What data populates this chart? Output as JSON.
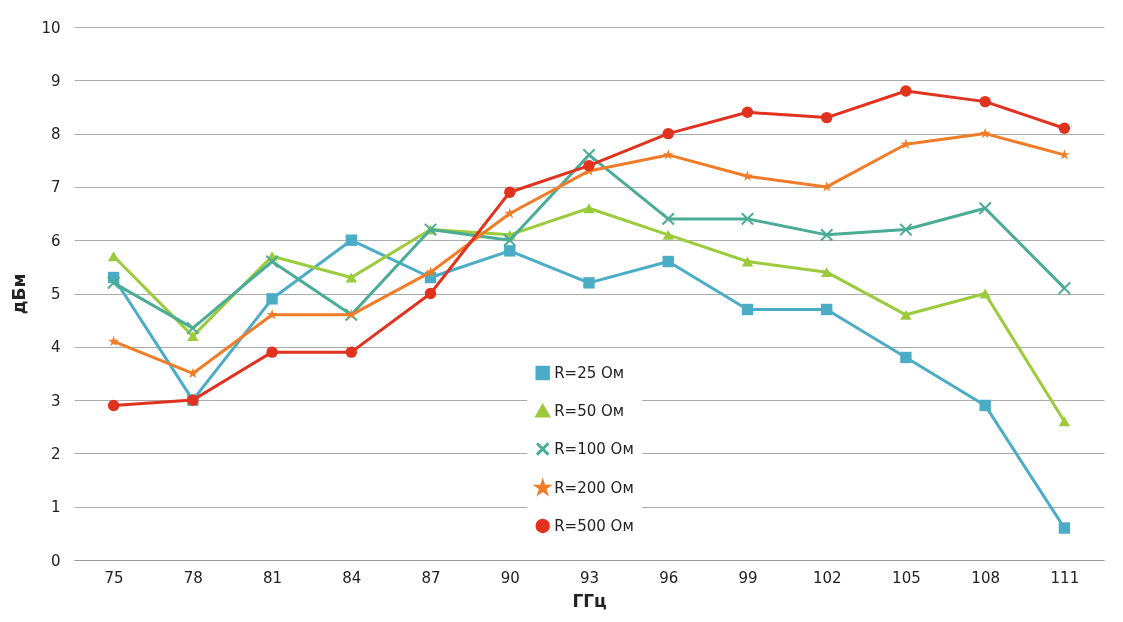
{
  "chart_data": {
    "type": "line",
    "xlabel": "ГГц",
    "ylabel": "дБм",
    "categories": [
      "75",
      "78",
      "81",
      "84",
      "87",
      "90",
      "93",
      "96",
      "99",
      "102",
      "105",
      "108",
      "111"
    ],
    "series": [
      {
        "name": "R=25 Ом",
        "color": "#4bacc6",
        "marker": "square",
        "values": [
          5.3,
          3.0,
          4.9,
          6.0,
          5.3,
          5.8,
          5.2,
          5.6,
          4.7,
          4.7,
          3.8,
          2.9,
          0.6
        ]
      },
      {
        "name": "R=50 Ом",
        "color": "#9bcb3c",
        "marker": "triangle",
        "values": [
          5.7,
          4.2,
          5.7,
          5.3,
          6.2,
          6.1,
          6.6,
          6.1,
          5.6,
          5.4,
          4.6,
          5.0,
          2.6
        ]
      },
      {
        "name": "R=100 Ом",
        "color": "#4aac96",
        "marker": "cross",
        "values": [
          5.2,
          4.35,
          5.6,
          4.6,
          6.2,
          6.0,
          7.6,
          6.4,
          6.4,
          6.1,
          6.2,
          6.6,
          5.1
        ]
      },
      {
        "name": "R=200 Ом",
        "color": "#f07c28",
        "marker": "star",
        "values": [
          4.1,
          3.5,
          4.6,
          4.6,
          5.4,
          6.5,
          7.3,
          7.6,
          7.2,
          7.0,
          7.8,
          8.0,
          7.6
        ]
      },
      {
        "name": "R=500 Ом",
        "color": "#e0321e",
        "marker": "circle",
        "values": [
          2.9,
          3.0,
          3.9,
          3.9,
          5.0,
          6.9,
          7.4,
          8.0,
          8.4,
          8.3,
          8.8,
          8.6,
          8.1
        ]
      }
    ],
    "ylim": [
      0,
      10
    ],
    "yticks": [
      0,
      1,
      2,
      3,
      4,
      5,
      6,
      7,
      8,
      9,
      10
    ],
    "grid": "y",
    "legend": "bottom",
    "line_style": "solid"
  }
}
